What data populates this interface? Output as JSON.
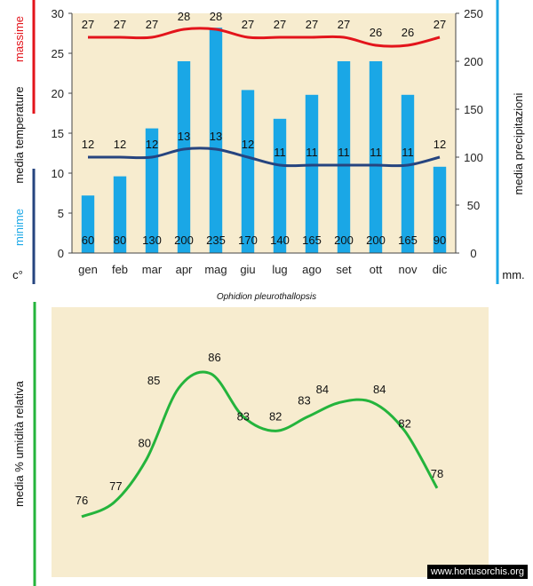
{
  "chart_data": [
    {
      "type": "bar+line",
      "title": "",
      "categories": [
        "gen",
        "feb",
        "mar",
        "apr",
        "mag",
        "giu",
        "lug",
        "ago",
        "set",
        "ott",
        "nov",
        "dic"
      ],
      "left_axis": {
        "label_top": "massime",
        "label_mid": "media  temperature",
        "label_bottom": "minime",
        "unit": "c°",
        "ylim": [
          0,
          30
        ],
        "ticks": [
          "0",
          "5",
          "10",
          "15",
          "20",
          "25",
          "30"
        ]
      },
      "right_axis": {
        "label": "media  precipitazioni",
        "unit": "mm.",
        "ylim": [
          0,
          250
        ],
        "ticks": [
          "0",
          "50",
          "100",
          "150",
          "200",
          "250"
        ]
      },
      "series": [
        {
          "name": "media precipitazioni",
          "kind": "bar",
          "axis": "right",
          "values": [
            60,
            80,
            130,
            200,
            235,
            170,
            140,
            165,
            200,
            200,
            165,
            90
          ],
          "labels": [
            "60",
            "80",
            "130",
            "200",
            "235",
            "170",
            "140",
            "165",
            "200",
            "200",
            "165",
            "90"
          ]
        },
        {
          "name": "massime",
          "kind": "line",
          "axis": "left",
          "values": [
            27,
            27,
            27,
            28,
            28,
            27,
            27,
            27,
            27,
            26,
            26,
            27
          ],
          "labels": [
            "27",
            "27",
            "27",
            "28",
            "28",
            "27",
            "27",
            "27",
            "27",
            "26",
            "26",
            "27"
          ]
        },
        {
          "name": "minime",
          "kind": "line",
          "axis": "left",
          "values": [
            12,
            12,
            12,
            13,
            13,
            12,
            11,
            11,
            11,
            11,
            11,
            12
          ],
          "labels": [
            "12",
            "12",
            "12",
            "13",
            "13",
            "12",
            "11",
            "11",
            "11",
            "11",
            "11",
            "12"
          ]
        }
      ],
      "colors": {
        "bar": "#1aa7e6",
        "max_line": "#e3141b",
        "min_line": "#26447f",
        "axis_right": "#1aa7e6",
        "axis_left_top": "#e3141b",
        "axis_left_bottom": "#26447f"
      }
    },
    {
      "type": "line",
      "title": "Ophidion pleurothallopsis",
      "ylabel": "media %  umidità relativa",
      "values": [
        76,
        77,
        80,
        85,
        86,
        83,
        82,
        83,
        84,
        84,
        82,
        78
      ],
      "labels": [
        "76",
        "77",
        "80",
        "85",
        "86",
        "83",
        "82",
        "83",
        "84",
        "84",
        "82",
        "78"
      ],
      "ylim": [
        74,
        88
      ],
      "colors": {
        "line": "#24b43c",
        "axis": "#24b43c",
        "panel": "#f7eccf"
      }
    }
  ],
  "watermark": "www.hortusorchis.org"
}
